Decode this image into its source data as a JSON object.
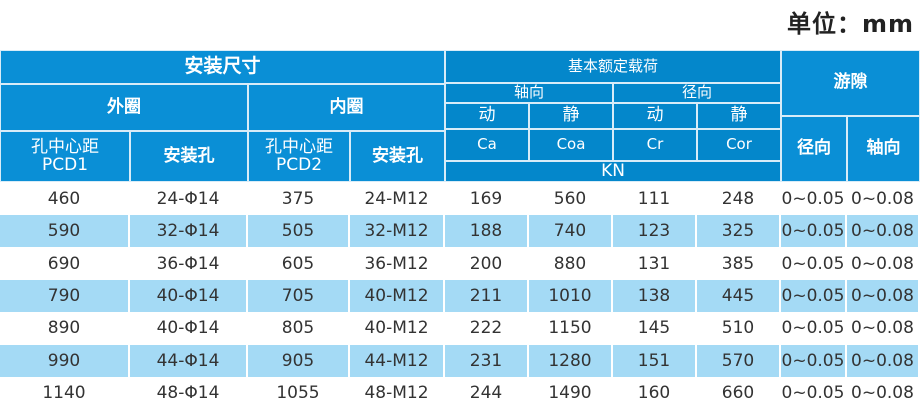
{
  "unit_label": "单位：mm",
  "colors": {
    "header": "#0a8fd6",
    "header_dark": "#0487cb",
    "row_alt": "#a4daf5",
    "text": "#333333"
  },
  "header": {
    "install_dims": "安装尺寸",
    "outer_ring": "外圈",
    "inner_ring": "内圈",
    "pcd1": "孔中心距\nPCD1",
    "pcd2": "孔中心距\nPCD2",
    "mount_hole_outer": "安装孔",
    "mount_hole_inner": "安装孔",
    "basic_load": "基本额定载荷",
    "axial": "轴向",
    "radial": "径向",
    "dyn_a": "动",
    "stat_a": "静",
    "dyn_r": "动",
    "stat_r": "静",
    "ca": "Ca",
    "coa": "Coa",
    "cr": "Cr",
    "cor": "Cor",
    "kn": "KN",
    "clearance": "游隙",
    "clear_radial": "径向",
    "clear_axial": "轴向"
  },
  "rows": [
    [
      "460",
      "24-Φ14",
      "375",
      "24-M12",
      "169",
      "560",
      "111",
      "248",
      "0~0.05",
      "0~0.08"
    ],
    [
      "590",
      "32-Φ14",
      "505",
      "32-M12",
      "188",
      "740",
      "123",
      "325",
      "0~0.05",
      "0~0.08"
    ],
    [
      "690",
      "36-Φ14",
      "605",
      "36-M12",
      "200",
      "880",
      "131",
      "385",
      "0~0.05",
      "0~0.08"
    ],
    [
      "790",
      "40-Φ14",
      "705",
      "40-M12",
      "211",
      "1010",
      "138",
      "445",
      "0~0.05",
      "0~0.08"
    ],
    [
      "890",
      "40-Φ14",
      "805",
      "40-M12",
      "222",
      "1150",
      "145",
      "510",
      "0~0.05",
      "0~0.08"
    ],
    [
      "990",
      "44-Φ14",
      "905",
      "44-M12",
      "231",
      "1280",
      "151",
      "570",
      "0~0.05",
      "0~0.08"
    ],
    [
      "1140",
      "48-Φ14",
      "1055",
      "48-M12",
      "244",
      "1490",
      "160",
      "660",
      "0~0.05",
      "0~0.08"
    ]
  ]
}
